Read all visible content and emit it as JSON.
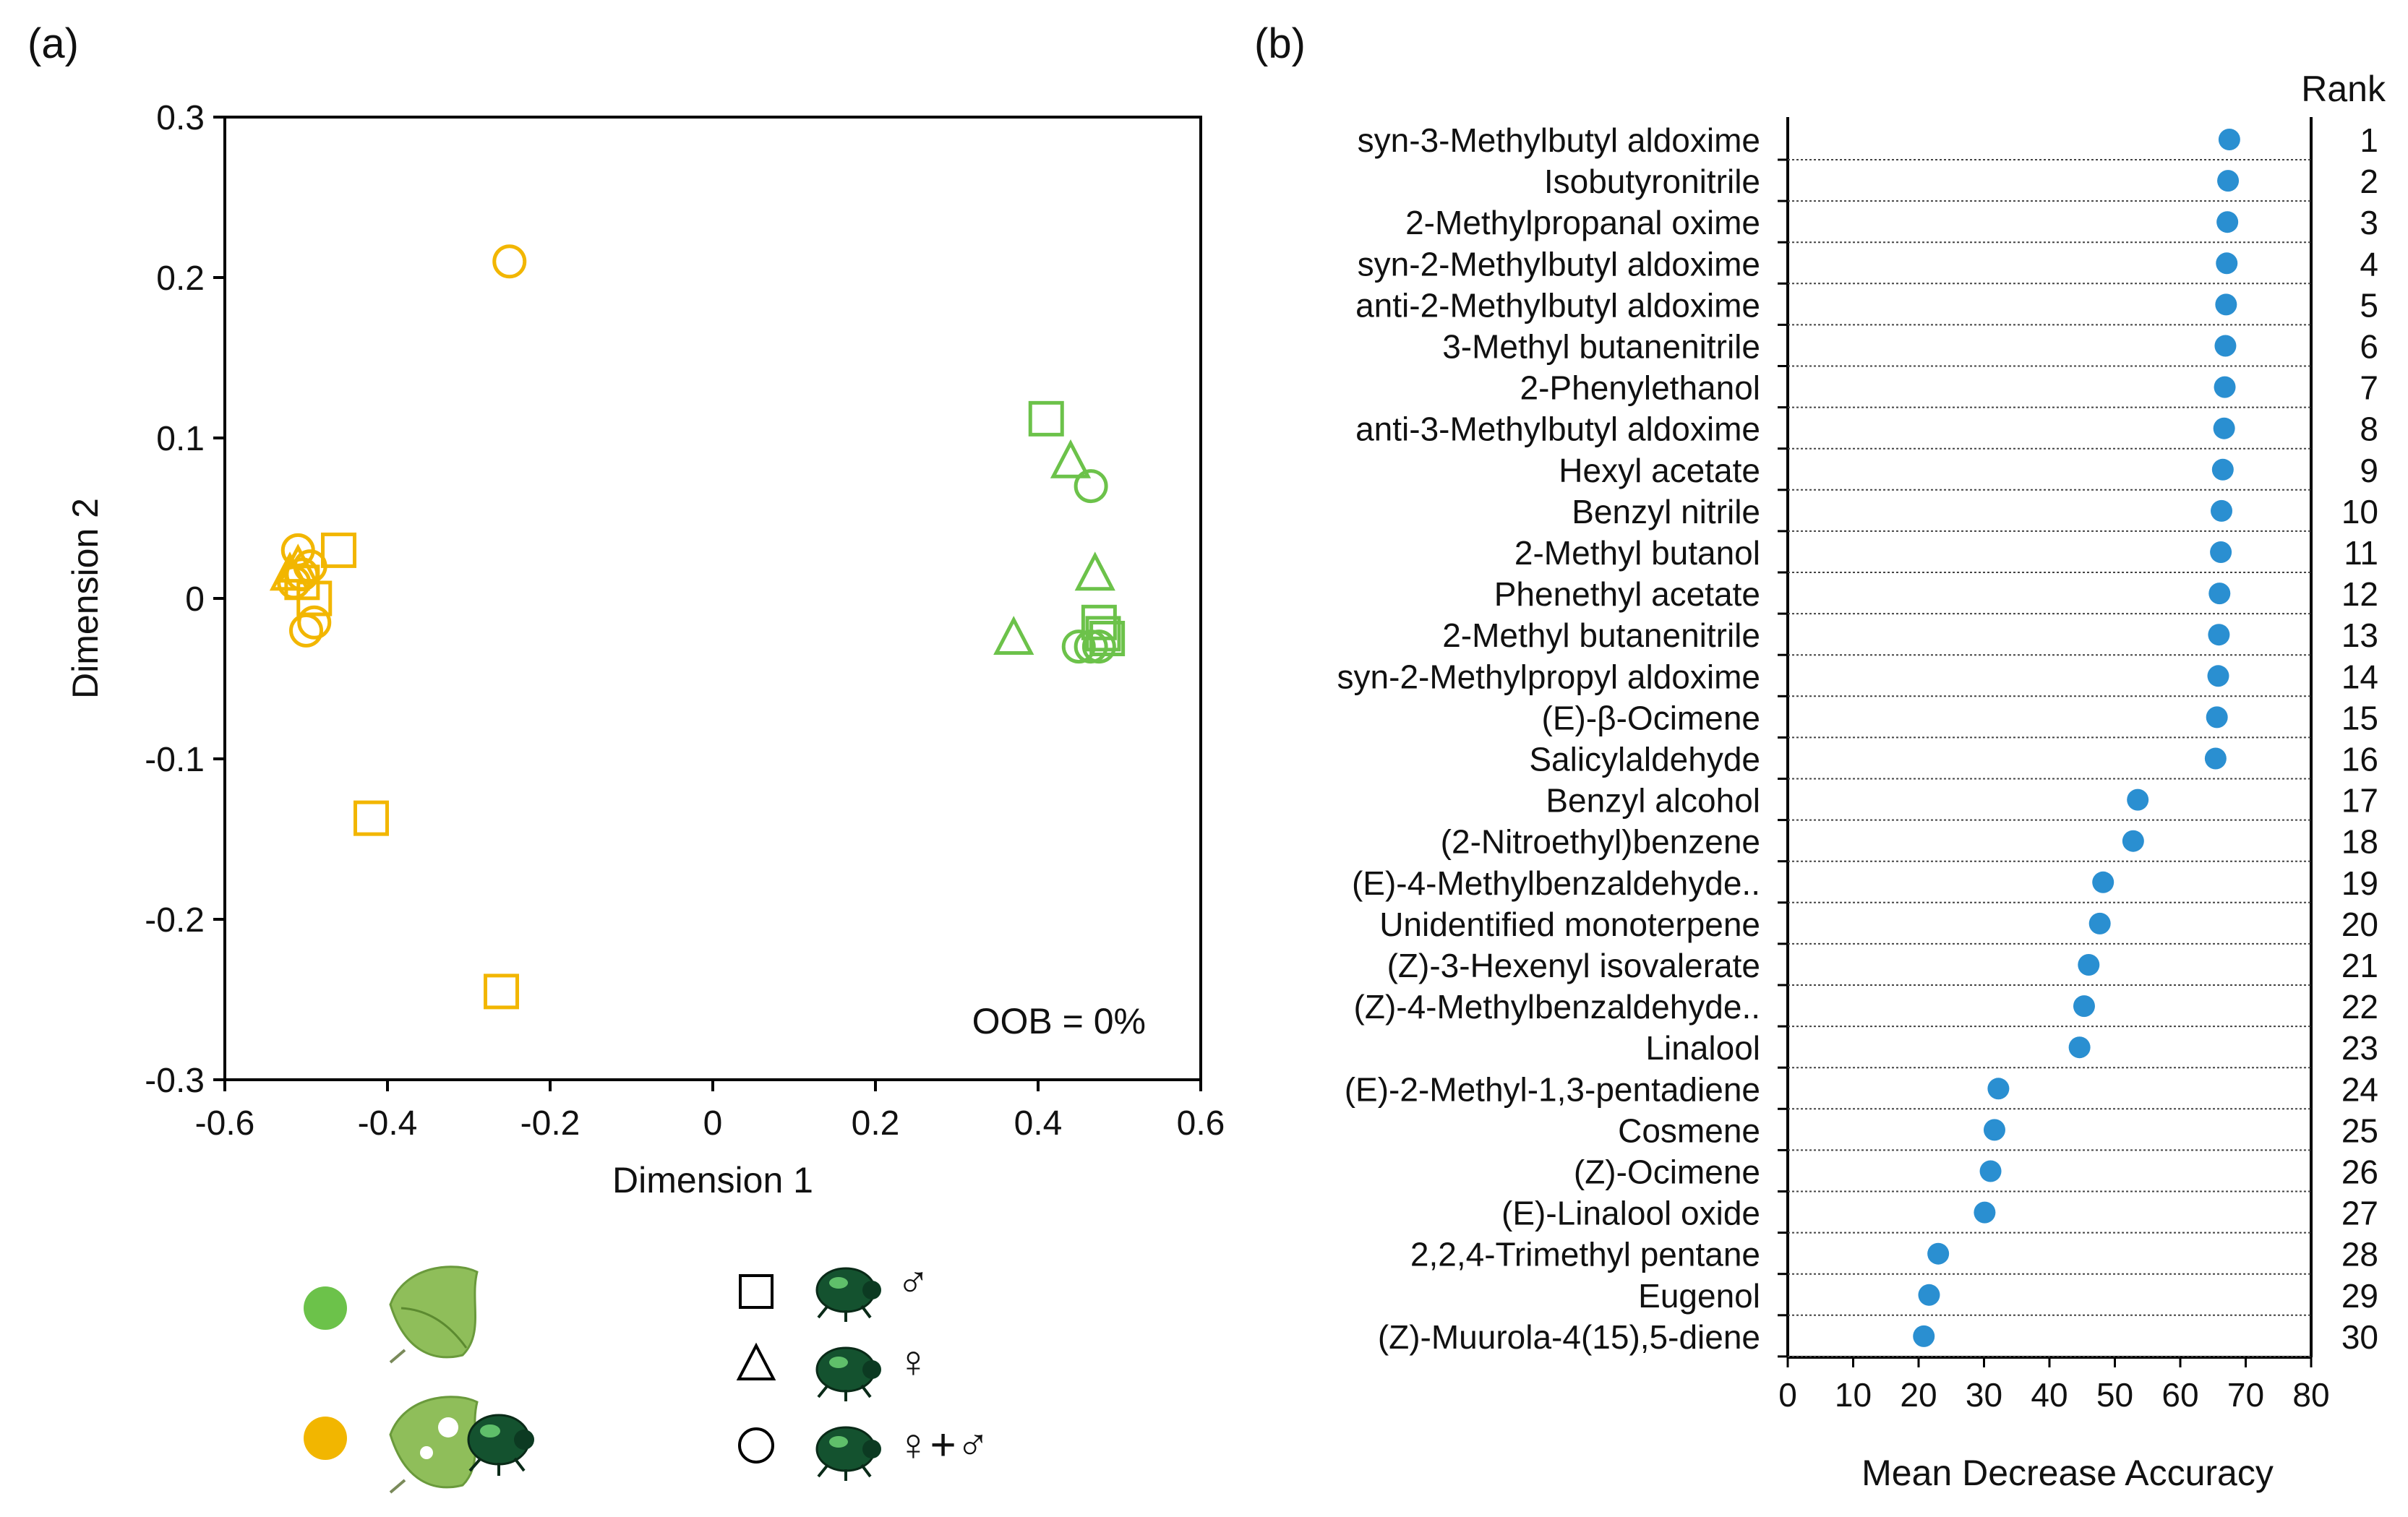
{
  "colors": {
    "green": "#6cc24a",
    "orange": "#f2b600",
    "blue": "#2a8fd1",
    "axis": "#000000"
  },
  "chart_data": [
    {
      "panel": "(a)",
      "type": "scatter",
      "xlabel": "Dimension 1",
      "ylabel": "Dimension 2",
      "xlim": [
        -0.6,
        0.6
      ],
      "ylim": [
        -0.3,
        0.3
      ],
      "xticks": [
        "-0.6",
        "-0.4",
        "-0.2",
        "0",
        "0.2",
        "0.4",
        "0.6"
      ],
      "yticks": [
        "0.3",
        "0.2",
        "0.1",
        "0",
        "-0.1",
        "-0.2",
        "-0.3"
      ],
      "annotation": "OOB = 0%",
      "points": [
        {
          "x": -0.25,
          "y": 0.21,
          "group": "orange",
          "shape": "circle"
        },
        {
          "x": -0.46,
          "y": 0.03,
          "group": "orange",
          "shape": "square"
        },
        {
          "x": -0.505,
          "y": 0.01,
          "group": "orange",
          "shape": "square"
        },
        {
          "x": -0.49,
          "y": 0.0,
          "group": "orange",
          "shape": "square"
        },
        {
          "x": -0.51,
          "y": 0.03,
          "group": "orange",
          "shape": "circle"
        },
        {
          "x": -0.505,
          "y": 0.015,
          "group": "orange",
          "shape": "circle"
        },
        {
          "x": -0.495,
          "y": 0.02,
          "group": "orange",
          "shape": "circle"
        },
        {
          "x": -0.515,
          "y": 0.01,
          "group": "orange",
          "shape": "circle"
        },
        {
          "x": -0.51,
          "y": 0.02,
          "group": "orange",
          "shape": "triangle"
        },
        {
          "x": -0.52,
          "y": 0.015,
          "group": "orange",
          "shape": "triangle"
        },
        {
          "x": -0.49,
          "y": -0.015,
          "group": "orange",
          "shape": "circle"
        },
        {
          "x": -0.5,
          "y": -0.02,
          "group": "orange",
          "shape": "circle"
        },
        {
          "x": -0.42,
          "y": -0.137,
          "group": "orange",
          "shape": "square"
        },
        {
          "x": -0.26,
          "y": -0.245,
          "group": "orange",
          "shape": "square"
        },
        {
          "x": 0.41,
          "y": 0.112,
          "group": "green",
          "shape": "square"
        },
        {
          "x": 0.44,
          "y": 0.085,
          "group": "green",
          "shape": "triangle"
        },
        {
          "x": 0.465,
          "y": 0.07,
          "group": "green",
          "shape": "circle"
        },
        {
          "x": 0.47,
          "y": 0.015,
          "group": "green",
          "shape": "triangle"
        },
        {
          "x": 0.37,
          "y": -0.025,
          "group": "green",
          "shape": "triangle"
        },
        {
          "x": 0.45,
          "y": -0.03,
          "group": "green",
          "shape": "circle"
        },
        {
          "x": 0.465,
          "y": -0.03,
          "group": "green",
          "shape": "circle"
        },
        {
          "x": 0.475,
          "y": -0.015,
          "group": "green",
          "shape": "square"
        },
        {
          "x": 0.48,
          "y": -0.022,
          "group": "green",
          "shape": "square"
        },
        {
          "x": 0.485,
          "y": -0.025,
          "group": "green",
          "shape": "square"
        },
        {
          "x": 0.475,
          "y": -0.03,
          "group": "green",
          "shape": "circle"
        }
      ]
    },
    {
      "panel": "(b)",
      "type": "dot",
      "xlabel": "Mean Decrease Accuracy",
      "rank_header": "Rank",
      "xlim": [
        0,
        80
      ],
      "xticks": [
        "0",
        "10",
        "20",
        "30",
        "40",
        "50",
        "60",
        "70",
        "80"
      ],
      "categories": [
        "syn-3-Methylbutyl aldoxime",
        "Isobutyronitrile",
        "2-Methylpropanal oxime",
        "syn-2-Methylbutyl aldoxime",
        "anti-2-Methylbutyl aldoxime",
        "3-Methyl butanenitrile",
        "2-Phenylethanol",
        "anti-3-Methylbutyl aldoxime",
        "Hexyl acetate",
        "Benzyl nitrile",
        "2-Methyl butanol",
        "Phenethyl acetate",
        "2-Methyl butanenitrile",
        "syn-2-Methylpropyl aldoxime",
        "(E)-β-Ocimene",
        "Salicylaldehyde",
        "Benzyl alcohol",
        "(2-Nitroethyl)benzene",
        "(E)-4-Methylbenzaldehyde..",
        "Unidentified monoterpene",
        "(Z)-3-Hexenyl isovalerate",
        "(Z)-4-Methylbenzaldehyde..",
        "Linalool",
        "(E)-2-Methyl-1,3-pentadiene",
        "Cosmene",
        "(Z)-Ocimene",
        "(E)-Linalool oxide",
        "2,2,4-Trimethyl pentane",
        "Eugenol",
        "(Z)-Muurola-4(15),5-diene"
      ],
      "ranks": [
        "1",
        "2",
        "3",
        "4",
        "5",
        "6",
        "7",
        "8",
        "9",
        "10",
        "11",
        "12",
        "13",
        "14",
        "15",
        "16",
        "17",
        "18",
        "19",
        "20",
        "21",
        "22",
        "23",
        "24",
        "25",
        "26",
        "27",
        "28",
        "29",
        "30"
      ],
      "values": [
        67.5,
        67.3,
        67.2,
        67.1,
        67.0,
        66.9,
        66.8,
        66.7,
        66.5,
        66.3,
        66.2,
        66.0,
        65.9,
        65.8,
        65.6,
        65.4,
        53.5,
        52.8,
        48.2,
        47.7,
        46.0,
        45.3,
        44.6,
        32.2,
        31.6,
        31.0,
        30.1,
        23.0,
        21.6,
        20.8
      ]
    }
  ],
  "panel_a": {
    "label": "(a)"
  },
  "panel_b": {
    "label": "(b)"
  },
  "legend": {
    "plant_intact": "intact leaf",
    "plant_damaged": "beetle-damaged leaf",
    "beetle": "leaf beetle",
    "items": [
      {
        "shape": "square",
        "symbol": "♂"
      },
      {
        "shape": "triangle",
        "symbol": "♀"
      },
      {
        "shape": "circle",
        "symbol": "♀+♂"
      }
    ]
  }
}
